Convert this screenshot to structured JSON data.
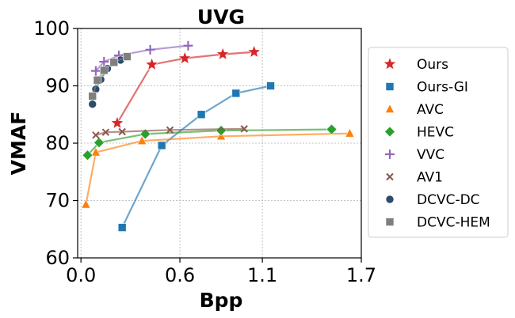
{
  "chart_data": {
    "type": "line",
    "title": "UVG",
    "xlabel": "Bpp",
    "ylabel": "VMAF",
    "xlim": [
      -0.02,
      1.7
    ],
    "ylim": [
      60,
      100
    ],
    "xticks": [
      0.0,
      0.6,
      1.1,
      1.7
    ],
    "xtick_labels": [
      "0.0",
      "0.6",
      "1.1",
      "1.7"
    ],
    "yticks": [
      60,
      70,
      80,
      90,
      100
    ],
    "ytick_labels": [
      "60",
      "70",
      "80",
      "90",
      "100"
    ],
    "grid": true,
    "legend_position": "right",
    "series": [
      {
        "name": "Ours",
        "color": "#d62728",
        "marker": "star",
        "x": [
          0.22,
          0.43,
          0.63,
          0.86,
          1.05
        ],
        "y": [
          83.5,
          93.7,
          94.8,
          95.5,
          95.9
        ]
      },
      {
        "name": "Ours-GI",
        "color": "#1f77b4",
        "marker": "square",
        "x": [
          0.25,
          0.49,
          0.73,
          0.94,
          1.15
        ],
        "y": [
          65.3,
          79.6,
          85.0,
          88.7,
          90.0
        ]
      },
      {
        "name": "AVC",
        "color": "#ff7f0e",
        "marker": "triangle",
        "x": [
          0.03,
          0.09,
          0.37,
          0.85,
          1.63
        ],
        "y": [
          69.3,
          78.4,
          80.4,
          81.2,
          81.7
        ]
      },
      {
        "name": "HEVC",
        "color": "#2ca02c",
        "marker": "diamond",
        "x": [
          0.04,
          0.11,
          0.39,
          0.85,
          1.52
        ],
        "y": [
          77.9,
          80.1,
          81.6,
          82.2,
          82.4
        ]
      },
      {
        "name": "VVC",
        "color": "#9467bd",
        "marker": "plus",
        "x": [
          0.09,
          0.14,
          0.23,
          0.42,
          0.65
        ],
        "y": [
          92.6,
          94.2,
          95.3,
          96.3,
          97.0
        ]
      },
      {
        "name": "AV1",
        "color": "#8c564b",
        "marker": "x",
        "x": [
          0.09,
          0.15,
          0.25,
          0.54,
          0.99
        ],
        "y": [
          81.4,
          81.9,
          82.0,
          82.3,
          82.5
        ]
      },
      {
        "name": "DCVC-DC",
        "color": "#2d4b6b",
        "marker": "circle",
        "x": [
          0.07,
          0.09,
          0.12,
          0.16,
          0.24
        ],
        "y": [
          86.8,
          89.4,
          91.1,
          93.0,
          94.5
        ]
      },
      {
        "name": "DCVC-HEM",
        "color": "#7f7f7f",
        "marker": "square",
        "x": [
          0.07,
          0.1,
          0.14,
          0.2,
          0.28
        ],
        "y": [
          88.2,
          91.0,
          92.7,
          94.1,
          95.1
        ]
      }
    ]
  }
}
